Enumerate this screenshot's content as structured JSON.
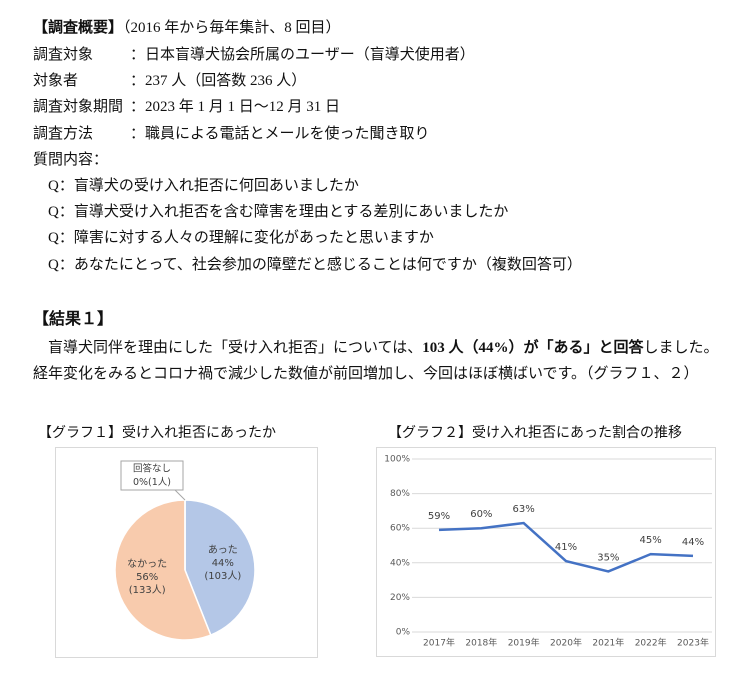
{
  "header": {
    "title": "【調査概要】",
    "subtitle": "（2016 年から毎年集計、8 回目）"
  },
  "overview": {
    "rows": [
      [
        "調査対象",
        "：日本盲導犬協会所属のユーザー（盲導犬使用者）"
      ],
      [
        "対象者",
        "：237 人（回答数 236 人）"
      ],
      [
        "調査対象期間",
        "：2023 年 1 月 1 日～12 月 31 日"
      ],
      [
        "調査方法",
        "：職員による電話とメールを使った聞き取り"
      ],
      [
        "質問内容：",
        ""
      ]
    ],
    "questions": [
      "Q：盲導犬の受け入れ拒否に何回あいましたか",
      "Q：盲導犬受け入れ拒否を含む障害を理由とする差別にあいましたか",
      "Q：障害に対する人々の理解に変化があったと思いますか",
      "Q：あなたにとって、社会参加の障壁だと感じることは何ですか（複数回答可）"
    ]
  },
  "result": {
    "title": "【結果１】",
    "paragraph": [
      "盲導犬同伴を理由にした「受け入れ拒否」については、",
      "103 人（44%）が「ある」と回答",
      "しました。経年変化をみるとコロナ禍で減少した数値が前回増加し、今回はほぼ横ばいです。（グラフ１、２）"
    ]
  },
  "chart_data": [
    {
      "type": "pie",
      "title": "【グラフ１】受け入れ拒否にあったか",
      "categories": [
        "あった",
        "なかった",
        "回答なし"
      ],
      "values": [
        44,
        56,
        0
      ],
      "value_labels": [
        "44%",
        "56%",
        "0%"
      ],
      "counts": [
        103,
        133,
        1
      ],
      "count_labels": [
        "(103人)",
        "(133人)",
        "(1人)"
      ],
      "colors": [
        "#b4c7e7",
        "#f8cbad",
        "#d9d9d9"
      ]
    },
    {
      "type": "line",
      "title": "【グラフ２】受け入れ拒否にあった割合の推移",
      "categories": [
        "2017年",
        "2018年",
        "2019年",
        "2020年",
        "2021年",
        "2022年",
        "2023年"
      ],
      "values": [
        59,
        60,
        63,
        41,
        35,
        45,
        44
      ],
      "value_labels": [
        "59%",
        "60%",
        "63%",
        "41%",
        "35%",
        "45%",
        "44%"
      ],
      "color": "#4472c4",
      "ylim": [
        0,
        100
      ],
      "yticks": [
        {
          "value": 0,
          "label": "0%"
        },
        {
          "value": 20,
          "label": "20%"
        },
        {
          "value": 40,
          "label": "40%"
        },
        {
          "value": 60,
          "label": "60%"
        },
        {
          "value": 80,
          "label": "80%"
        },
        {
          "value": 100,
          "label": "100%"
        }
      ],
      "grid": true
    }
  ]
}
